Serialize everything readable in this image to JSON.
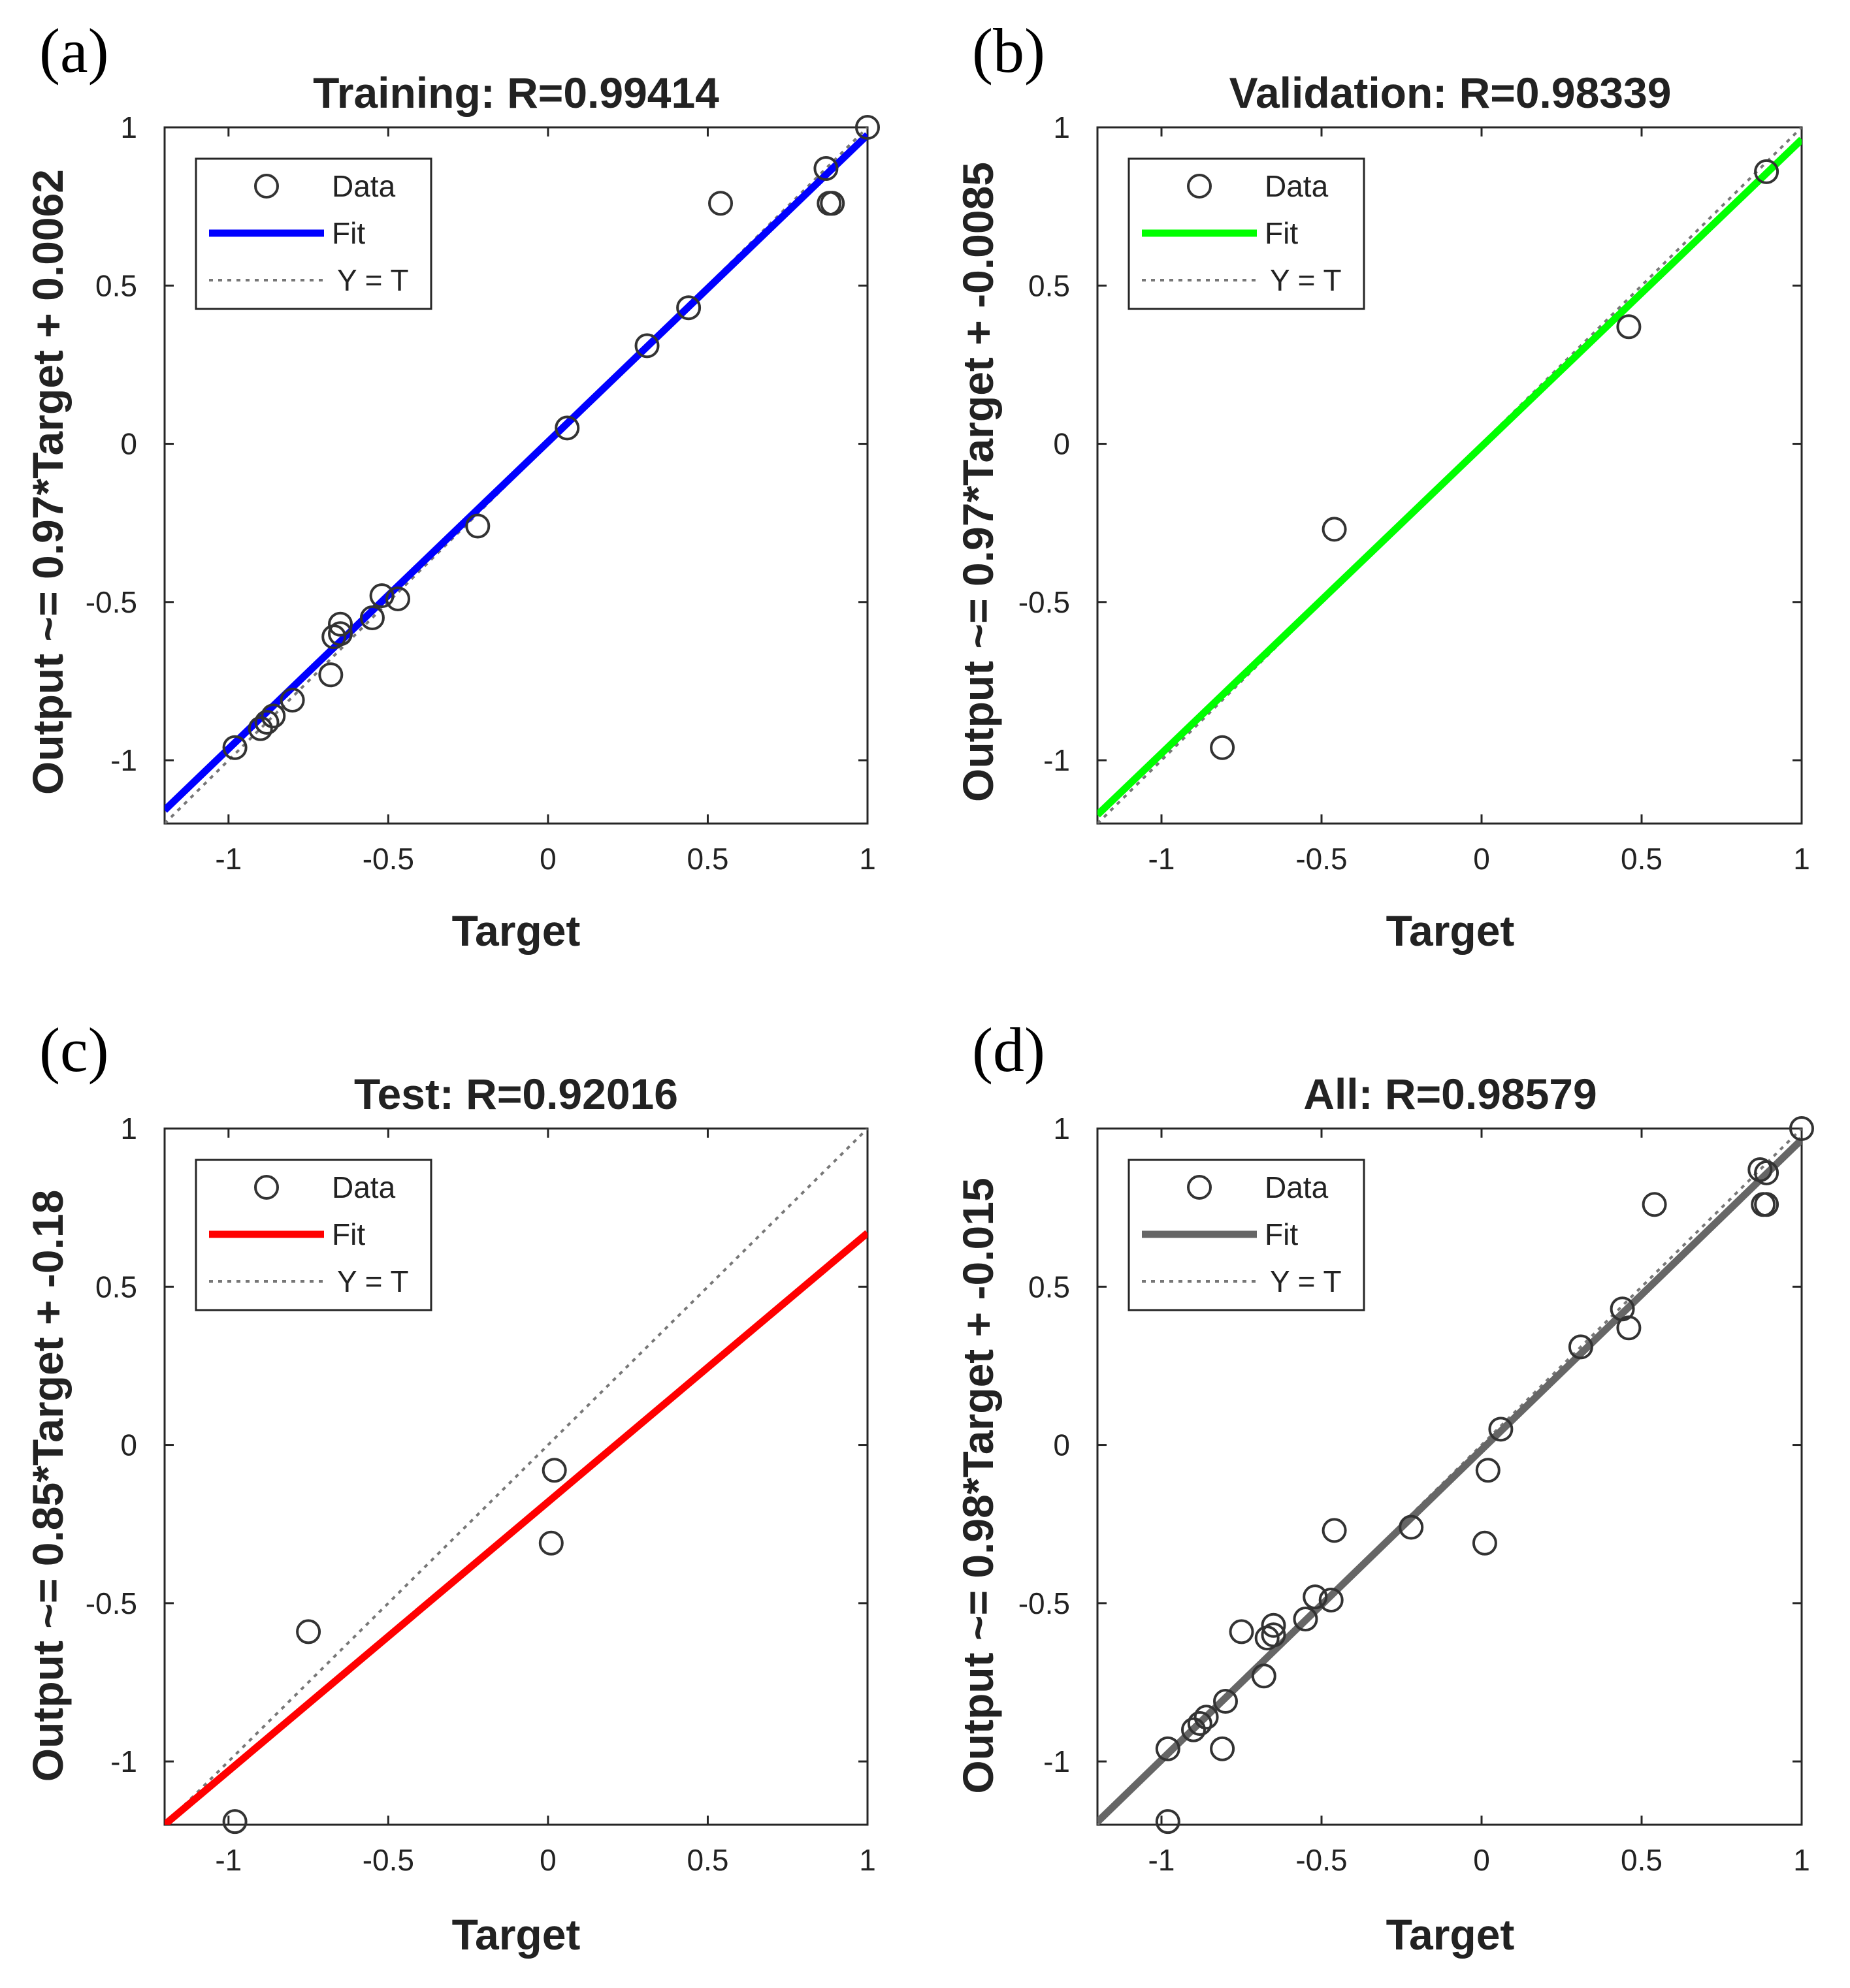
{
  "chart_data": [
    {
      "type": "scatter",
      "panel_label": "(a)",
      "title": "Training: R=0.99414",
      "xlabel": "Target",
      "ylabel": "Output ~= 0.97*Target + 0.0062",
      "xlim": [
        -1.2,
        1
      ],
      "ylim": [
        -1.2,
        1
      ],
      "xticks": [
        "-1",
        "-0.5",
        "0",
        "0.5",
        "1"
      ],
      "yticks": [
        "-1",
        "-0.5",
        "0",
        "0.5",
        "1"
      ],
      "fit": {
        "slope": 0.97,
        "intercept": 0.0062,
        "color": "#0000ff"
      },
      "legend": [
        "Data",
        "Fit",
        "Y = T"
      ],
      "legend_position": "top-left",
      "x": [
        -0.98,
        -0.9,
        -0.88,
        -0.86,
        -0.8,
        -0.68,
        -0.67,
        -0.65,
        -0.65,
        -0.55,
        -0.52,
        -0.47,
        -0.22,
        0.06,
        0.31,
        0.44,
        0.54,
        0.87,
        0.89,
        0.88,
        1.0
      ],
      "y": [
        -0.96,
        -0.9,
        -0.88,
        -0.86,
        -0.81,
        -0.73,
        -0.61,
        -0.57,
        -0.6,
        -0.55,
        -0.48,
        -0.49,
        -0.26,
        0.05,
        0.31,
        0.43,
        0.76,
        0.87,
        0.76,
        0.76,
        1.0
      ]
    },
    {
      "type": "scatter",
      "panel_label": "(b)",
      "title": "Validation: R=0.98339",
      "xlabel": "Target",
      "ylabel": "Output ~= 0.97*Target + -0.0085",
      "xlim": [
        -1.2,
        1
      ],
      "ylim": [
        -1.2,
        1
      ],
      "xticks": [
        "-1",
        "-0.5",
        "0",
        "0.5",
        "1"
      ],
      "yticks": [
        "-1",
        "-0.5",
        "0",
        "0.5",
        "1"
      ],
      "fit": {
        "slope": 0.97,
        "intercept": -0.0085,
        "color": "#00ff00"
      },
      "legend": [
        "Data",
        "Fit",
        "Y = T"
      ],
      "legend_position": "top-left",
      "x": [
        -0.81,
        -0.46,
        0.46,
        0.89
      ],
      "y": [
        -0.96,
        -0.27,
        0.37,
        0.86
      ]
    },
    {
      "type": "scatter",
      "panel_label": "(c)",
      "title": "Test: R=0.92016",
      "xlabel": "Target",
      "ylabel": "Output ~= 0.85*Target + -0.18",
      "xlim": [
        -1.2,
        1
      ],
      "ylim": [
        -1.2,
        1
      ],
      "xticks": [
        "-1",
        "-0.5",
        "0",
        "0.5",
        "1"
      ],
      "yticks": [
        "-1",
        "-0.5",
        "0",
        "0.5",
        "1"
      ],
      "fit": {
        "slope": 0.85,
        "intercept": -0.18,
        "color": "#ff0000"
      },
      "legend": [
        "Data",
        "Fit",
        "Y = T"
      ],
      "legend_position": "top-left",
      "x": [
        -0.98,
        -0.75,
        0.01,
        0.02
      ],
      "y": [
        -1.19,
        -0.59,
        -0.31,
        -0.08
      ]
    },
    {
      "type": "scatter",
      "panel_label": "(d)",
      "title": "All: R=0.98579",
      "xlabel": "Target",
      "ylabel": "Output ~= 0.98*Target + -0.015",
      "xlim": [
        -1.2,
        1
      ],
      "ylim": [
        -1.2,
        1
      ],
      "xticks": [
        "-1",
        "-0.5",
        "0",
        "0.5",
        "1"
      ],
      "yticks": [
        "-1",
        "-0.5",
        "0",
        "0.5",
        "1"
      ],
      "fit": {
        "slope": 0.98,
        "intercept": -0.015,
        "color": "#666666"
      },
      "legend": [
        "Data",
        "Fit",
        "Y = T"
      ],
      "legend_position": "top-left",
      "x": [
        -0.98,
        -0.98,
        -0.9,
        -0.88,
        -0.86,
        -0.81,
        -0.8,
        -0.75,
        -0.68,
        -0.67,
        -0.65,
        -0.65,
        -0.55,
        -0.52,
        -0.47,
        -0.46,
        -0.22,
        0.01,
        0.02,
        0.06,
        0.31,
        0.44,
        0.46,
        0.54,
        0.87,
        0.89,
        0.89,
        0.88,
        1.0
      ],
      "y": [
        -0.96,
        -1.19,
        -0.9,
        -0.88,
        -0.86,
        -0.96,
        -0.81,
        -0.59,
        -0.73,
        -0.61,
        -0.57,
        -0.6,
        -0.55,
        -0.48,
        -0.49,
        -0.27,
        -0.26,
        -0.31,
        -0.08,
        0.05,
        0.31,
        0.43,
        0.37,
        0.76,
        0.87,
        0.86,
        0.76,
        0.76,
        1.0
      ]
    }
  ]
}
